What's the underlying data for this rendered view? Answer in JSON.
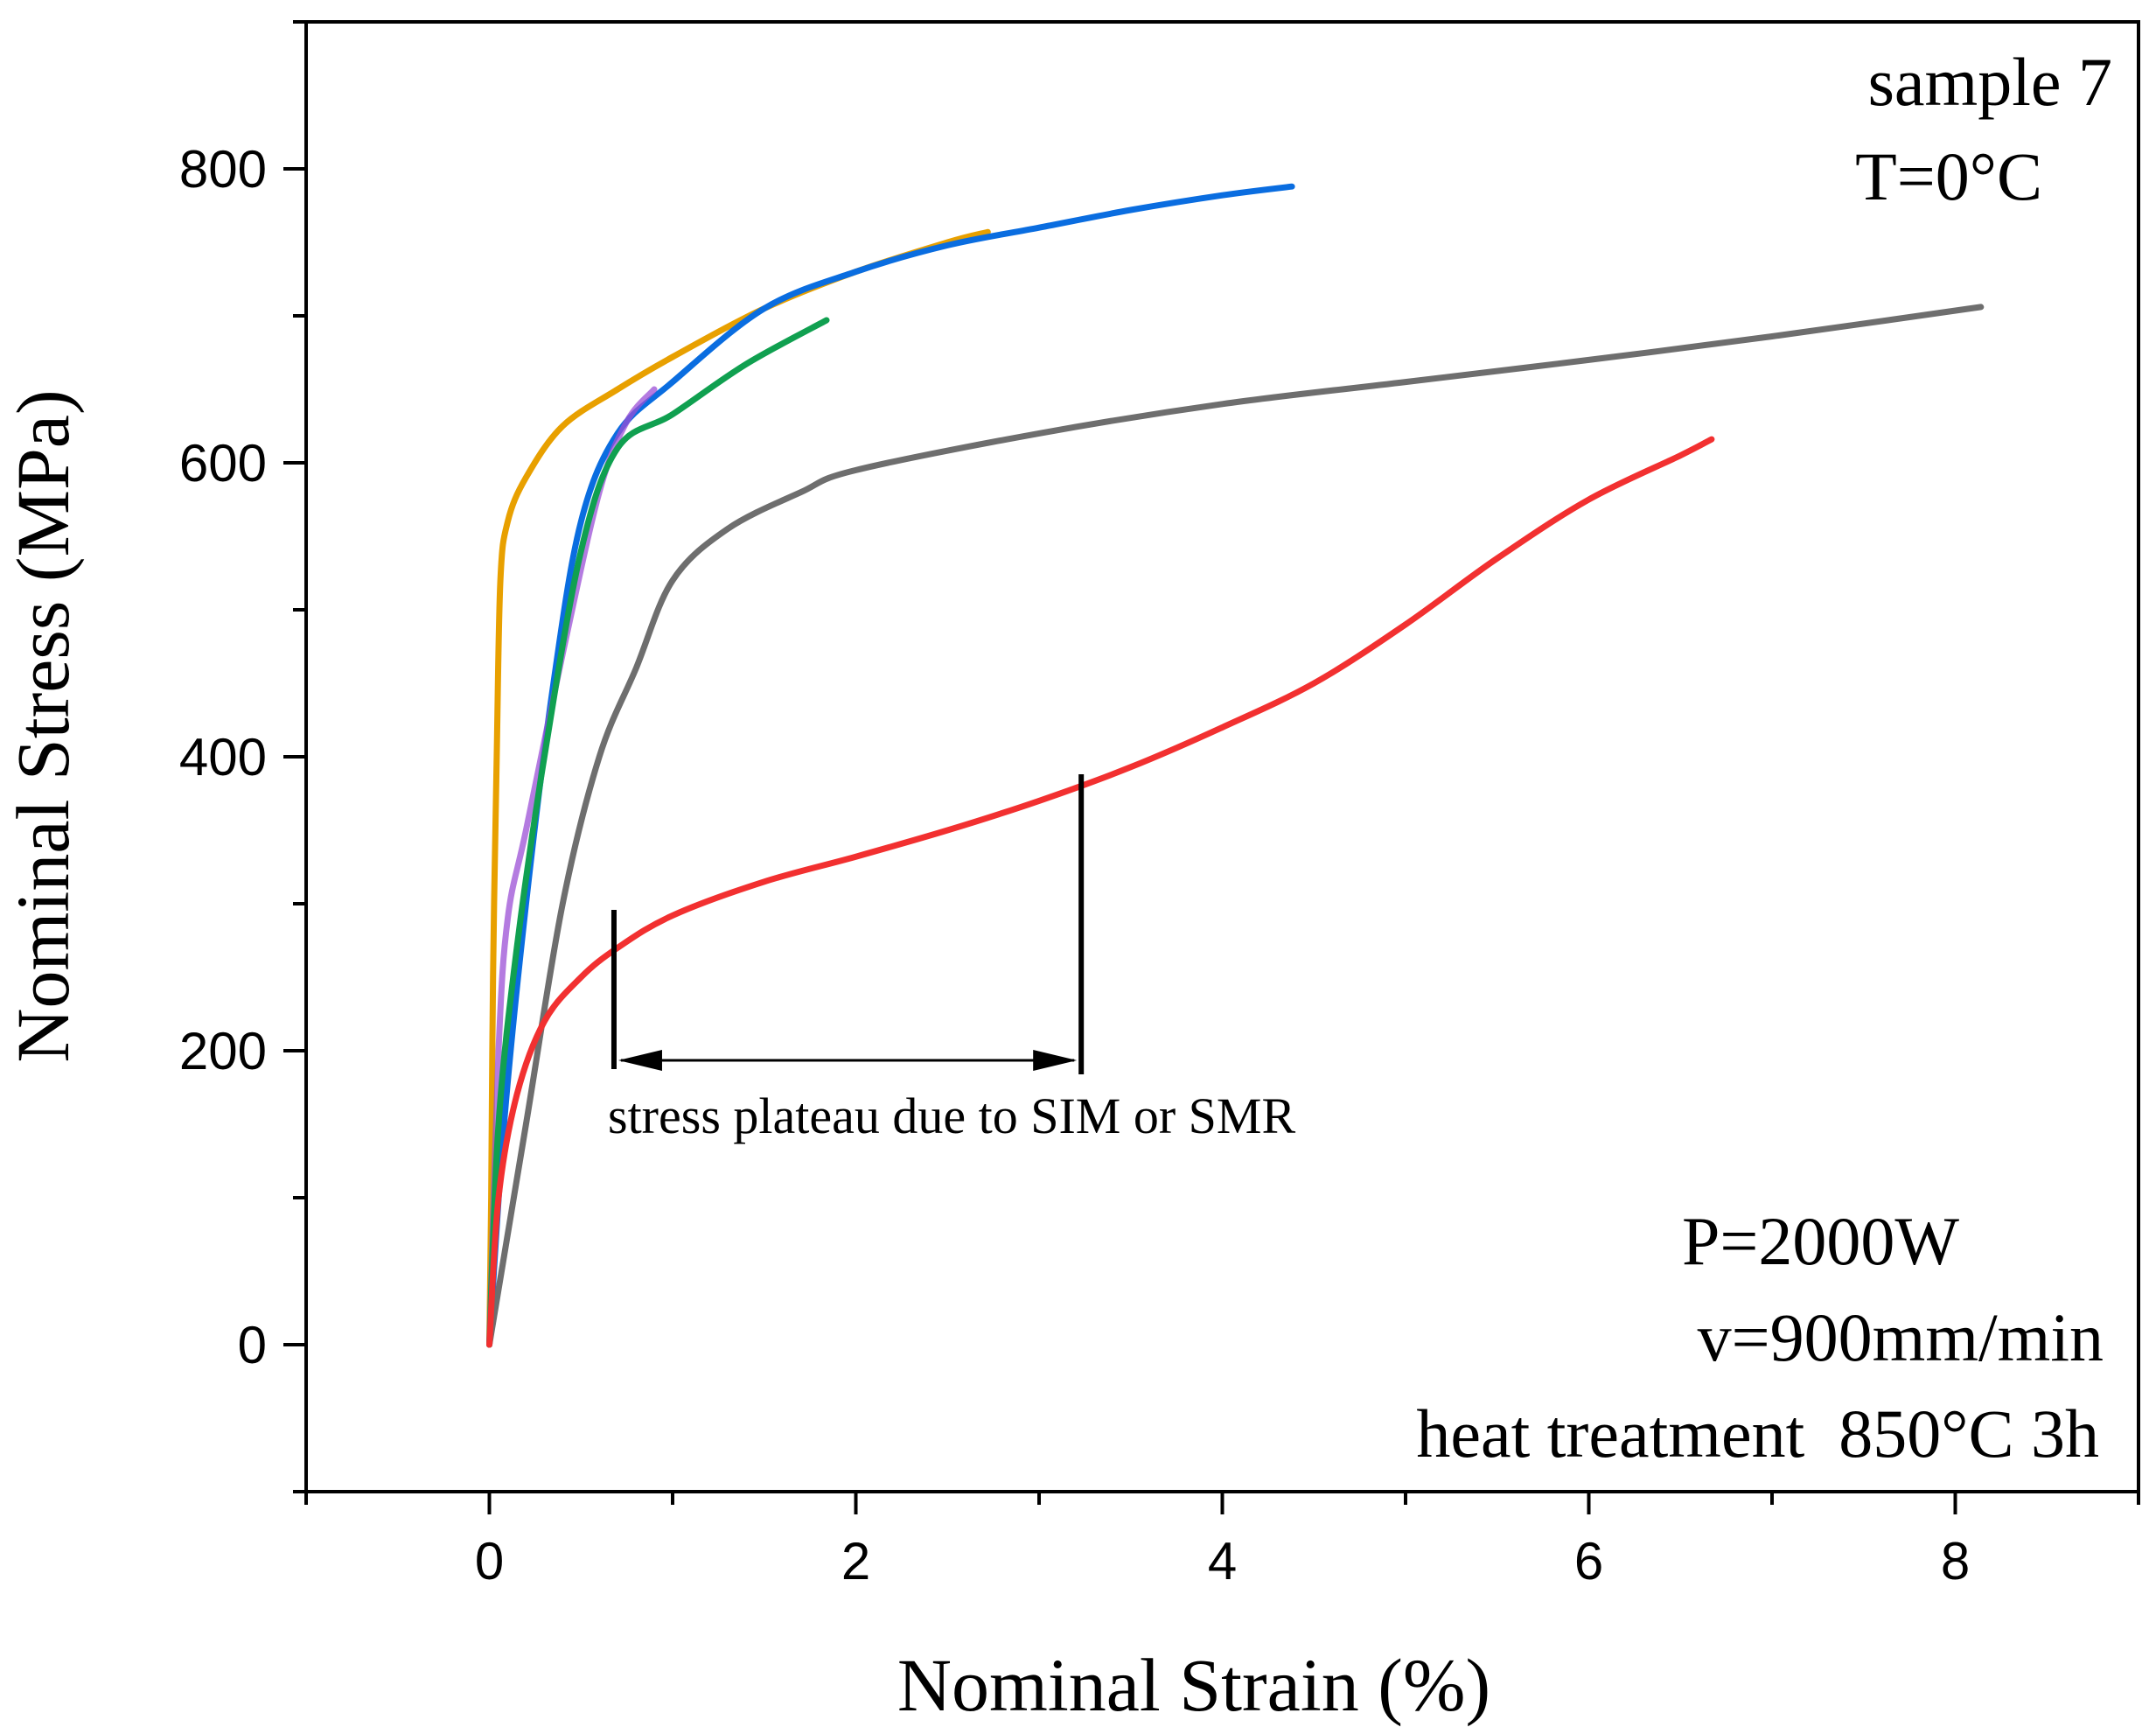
{
  "chart_data": {
    "type": "line",
    "title": "",
    "xlabel": "Nominal Strain (%)",
    "ylabel": "Nominal Stress (MPa)",
    "xlim": [
      -1,
      9
    ],
    "ylim": [
      -100,
      900
    ],
    "x_ticks": [
      "0",
      "2",
      "4",
      "6",
      "8"
    ],
    "y_ticks": [
      "0",
      "200",
      "400",
      "600",
      "800"
    ],
    "grid": false,
    "legend": "none",
    "series": [
      {
        "color": "#e8a000",
        "points": [
          [
            0.0,
            0
          ],
          [
            0.01,
            100
          ],
          [
            0.02,
            250
          ],
          [
            0.04,
            400
          ],
          [
            0.06,
            520
          ],
          [
            0.1,
            560
          ],
          [
            0.2,
            590
          ],
          [
            0.4,
            625
          ],
          [
            0.7,
            650
          ],
          [
            1.0,
            672
          ],
          [
            1.5,
            705
          ],
          [
            2.0,
            730
          ],
          [
            2.5,
            750
          ],
          [
            2.72,
            757
          ]
        ]
      },
      {
        "color": "#0a6de0",
        "points": [
          [
            0.0,
            0
          ],
          [
            0.08,
            150
          ],
          [
            0.2,
            300
          ],
          [
            0.35,
            450
          ],
          [
            0.5,
            560
          ],
          [
            0.7,
            620
          ],
          [
            1.0,
            655
          ],
          [
            1.5,
            705
          ],
          [
            2.0,
            730
          ],
          [
            2.5,
            748
          ],
          [
            3.0,
            760
          ],
          [
            3.5,
            772
          ],
          [
            4.0,
            782
          ],
          [
            4.38,
            788
          ]
        ]
      },
      {
        "color": "#9b4fd6",
        "opacity": 0.75,
        "points": [
          [
            0.0,
            0
          ],
          [
            0.05,
            200
          ],
          [
            0.1,
            290
          ],
          [
            0.2,
            350
          ],
          [
            0.4,
            470
          ],
          [
            0.6,
            580
          ],
          [
            0.75,
            628
          ],
          [
            0.9,
            650
          ]
        ]
      },
      {
        "color": "#10a050",
        "points": [
          [
            0.0,
            0
          ],
          [
            0.05,
            150
          ],
          [
            0.15,
            270
          ],
          [
            0.3,
            400
          ],
          [
            0.5,
            540
          ],
          [
            0.7,
            610
          ],
          [
            1.0,
            633
          ],
          [
            1.4,
            667
          ],
          [
            1.84,
            697
          ]
        ]
      },
      {
        "color": "#6e6e6e",
        "points": [
          [
            0.0,
            0
          ],
          [
            0.2,
            150
          ],
          [
            0.4,
            300
          ],
          [
            0.6,
            400
          ],
          [
            0.8,
            460
          ],
          [
            1.0,
            520
          ],
          [
            1.3,
            555
          ],
          [
            1.7,
            580
          ],
          [
            2.0,
            595
          ],
          [
            3.0,
            620
          ],
          [
            4.0,
            640
          ],
          [
            5.0,
            655
          ],
          [
            6.0,
            670
          ],
          [
            7.0,
            686
          ],
          [
            8.14,
            706
          ]
        ]
      },
      {
        "color": "#f23030",
        "points": [
          [
            0.0,
            0
          ],
          [
            0.05,
            100
          ],
          [
            0.15,
            170
          ],
          [
            0.3,
            220
          ],
          [
            0.5,
            250
          ],
          [
            0.7,
            270
          ],
          [
            1.0,
            292
          ],
          [
            1.5,
            315
          ],
          [
            2.0,
            332
          ],
          [
            2.5,
            350
          ],
          [
            3.0,
            370
          ],
          [
            3.5,
            393
          ],
          [
            4.0,
            420
          ],
          [
            4.5,
            450
          ],
          [
            5.0,
            490
          ],
          [
            5.5,
            535
          ],
          [
            6.0,
            575
          ],
          [
            6.5,
            605
          ],
          [
            6.67,
            616
          ]
        ]
      }
    ],
    "annotations": {
      "sample": "sample 7",
      "temperature": "T=0°C",
      "power": "P=2000W",
      "speed": "v=900mm/min",
      "heat_treatment": "heat treatment  850°C 3h",
      "plateau_label": "stress plateau due to SIM or SMR",
      "plateau_range": [
        0.68,
        3.23
      ]
    }
  }
}
